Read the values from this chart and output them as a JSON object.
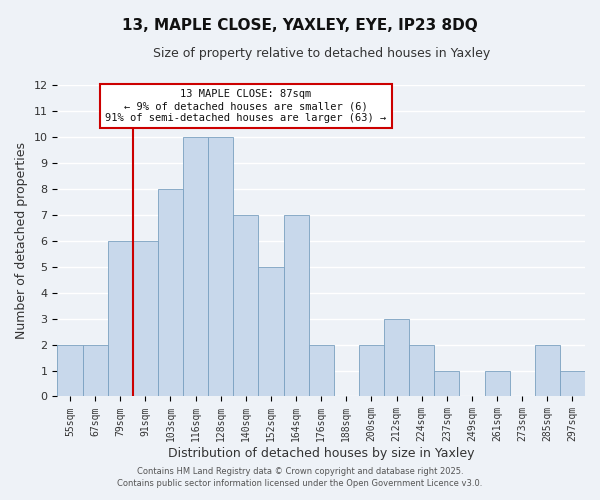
{
  "title": "13, MAPLE CLOSE, YAXLEY, EYE, IP23 8DQ",
  "subtitle": "Size of property relative to detached houses in Yaxley",
  "xlabel": "Distribution of detached houses by size in Yaxley",
  "ylabel": "Number of detached properties",
  "bar_color": "#c8d8eb",
  "bar_edge_color": "#7aa0c0",
  "background_color": "#eef2f7",
  "grid_color": "white",
  "categories": [
    "55sqm",
    "67sqm",
    "79sqm",
    "91sqm",
    "103sqm",
    "116sqm",
    "128sqm",
    "140sqm",
    "152sqm",
    "164sqm",
    "176sqm",
    "188sqm",
    "200sqm",
    "212sqm",
    "224sqm",
    "237sqm",
    "249sqm",
    "261sqm",
    "273sqm",
    "285sqm",
    "297sqm"
  ],
  "values": [
    2,
    2,
    6,
    6,
    8,
    10,
    10,
    7,
    5,
    7,
    2,
    0,
    2,
    3,
    2,
    1,
    0,
    1,
    0,
    2,
    1
  ],
  "ylim": [
    0,
    12
  ],
  "yticks": [
    0,
    1,
    2,
    3,
    4,
    5,
    6,
    7,
    8,
    9,
    10,
    11,
    12
  ],
  "annotation_title": "13 MAPLE CLOSE: 87sqm",
  "annotation_line1": "← 9% of detached houses are smaller (6)",
  "annotation_line2": "91% of semi-detached houses are larger (63) →",
  "annotation_box_color": "white",
  "annotation_box_edge": "#cc0000",
  "property_line_color": "#cc0000",
  "footer1": "Contains HM Land Registry data © Crown copyright and database right 2025.",
  "footer2": "Contains public sector information licensed under the Open Government Licence v3.0."
}
